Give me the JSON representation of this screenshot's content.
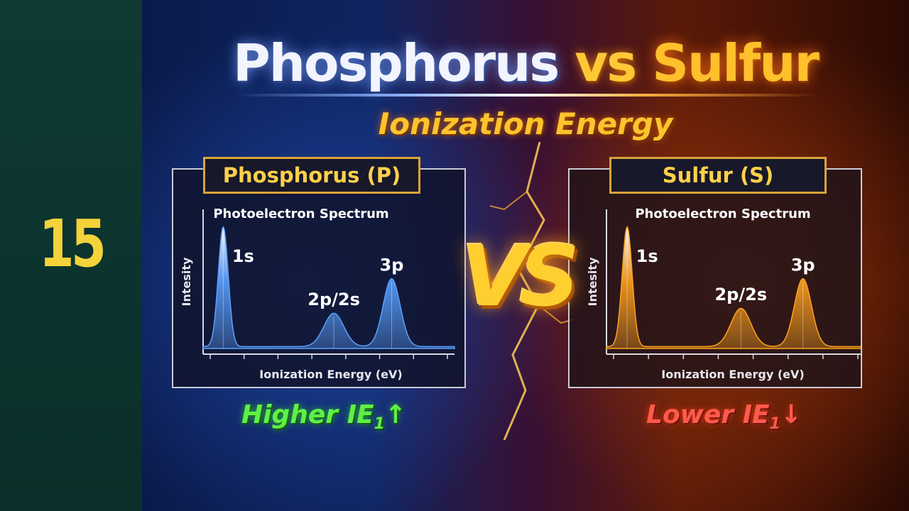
{
  "slide_number": "15",
  "title": {
    "left": "Phosphorus",
    "mid": "vs",
    "right": "Sulfur"
  },
  "subtitle": "Ionization Energy",
  "vs_label": "VS",
  "panels": [
    {
      "heading": "Phosphorus (P)",
      "note": "Higher IE",
      "note_sub": "1",
      "note_arrow": "↑"
    },
    {
      "heading": "Sulfur (S)",
      "note": "Lower IE",
      "note_sub": "1",
      "note_arrow": "↓"
    }
  ],
  "colors": {
    "phosphorus_peak": "#5aa0ff",
    "sulfur_peak": "#ffa21e",
    "higher": "#5ff048",
    "lower": "#ff5a4a"
  },
  "chart_data": [
    {
      "type": "line",
      "title": "Photoelectron Spectrum",
      "xlabel": "Ionization Energy (eV)",
      "ylabel": "Intesity",
      "grid": false,
      "series": [
        {
          "peaks": [
            {
              "label": "1s",
              "position": 0.08,
              "height": 0.97
            },
            {
              "label": "2p/2s",
              "position": 0.52,
              "height": 0.27
            },
            {
              "label": "3p",
              "position": 0.75,
              "height": 0.55
            }
          ]
        }
      ]
    },
    {
      "type": "line",
      "title": "Photoelectron Spectrum",
      "xlabel": "Ionization Energy (eV)",
      "ylabel": "Intesity",
      "grid": false,
      "series": [
        {
          "peaks": [
            {
              "label": "1s",
              "position": 0.08,
              "height": 0.97
            },
            {
              "label": "2p/2s",
              "position": 0.52,
              "height": 0.31
            },
            {
              "label": "3p",
              "position": 0.76,
              "height": 0.55
            }
          ]
        }
      ]
    }
  ]
}
